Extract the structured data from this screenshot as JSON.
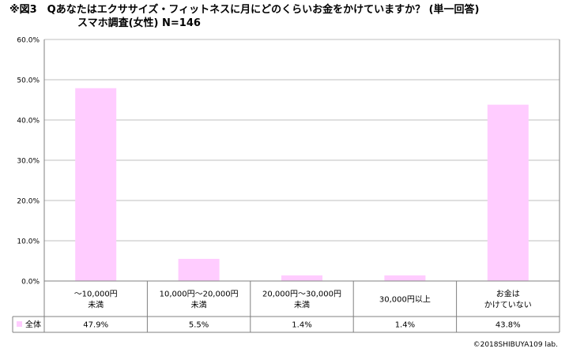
{
  "title": {
    "line1": "※図3　Qあなたはエクササイズ・フィットネスに月にどのくらいお金をかけていますか？ (単一回答)",
    "line2": "スマホ調査(女性) N=146"
  },
  "colors": {
    "bar": "#ffccff",
    "grid": "#bfbfbf",
    "axis": "#808080"
  },
  "chart_data": {
    "type": "bar",
    "categories": [
      [
        "～10,000円",
        "未満"
      ],
      [
        "10,000円～20,000円",
        "未満"
      ],
      [
        "20,000円～30,000円",
        "未満"
      ],
      [
        "30,000円以上"
      ],
      [
        "お金は",
        "かけていない"
      ]
    ],
    "series": [
      {
        "name": "全体",
        "values": [
          47.9,
          5.5,
          1.4,
          1.4,
          43.8
        ],
        "labels": [
          "47.9%",
          "5.5%",
          "1.4%",
          "1.4%",
          "43.8%"
        ]
      }
    ],
    "yticks": [
      "0.0%",
      "10.0%",
      "20.0%",
      "30.0%",
      "40.0%",
      "50.0%",
      "60.0%"
    ],
    "ylim": [
      0,
      60
    ],
    "grid": true,
    "legend": "data-table-row"
  },
  "copyright": "©2018SHIBUYA109 lab."
}
